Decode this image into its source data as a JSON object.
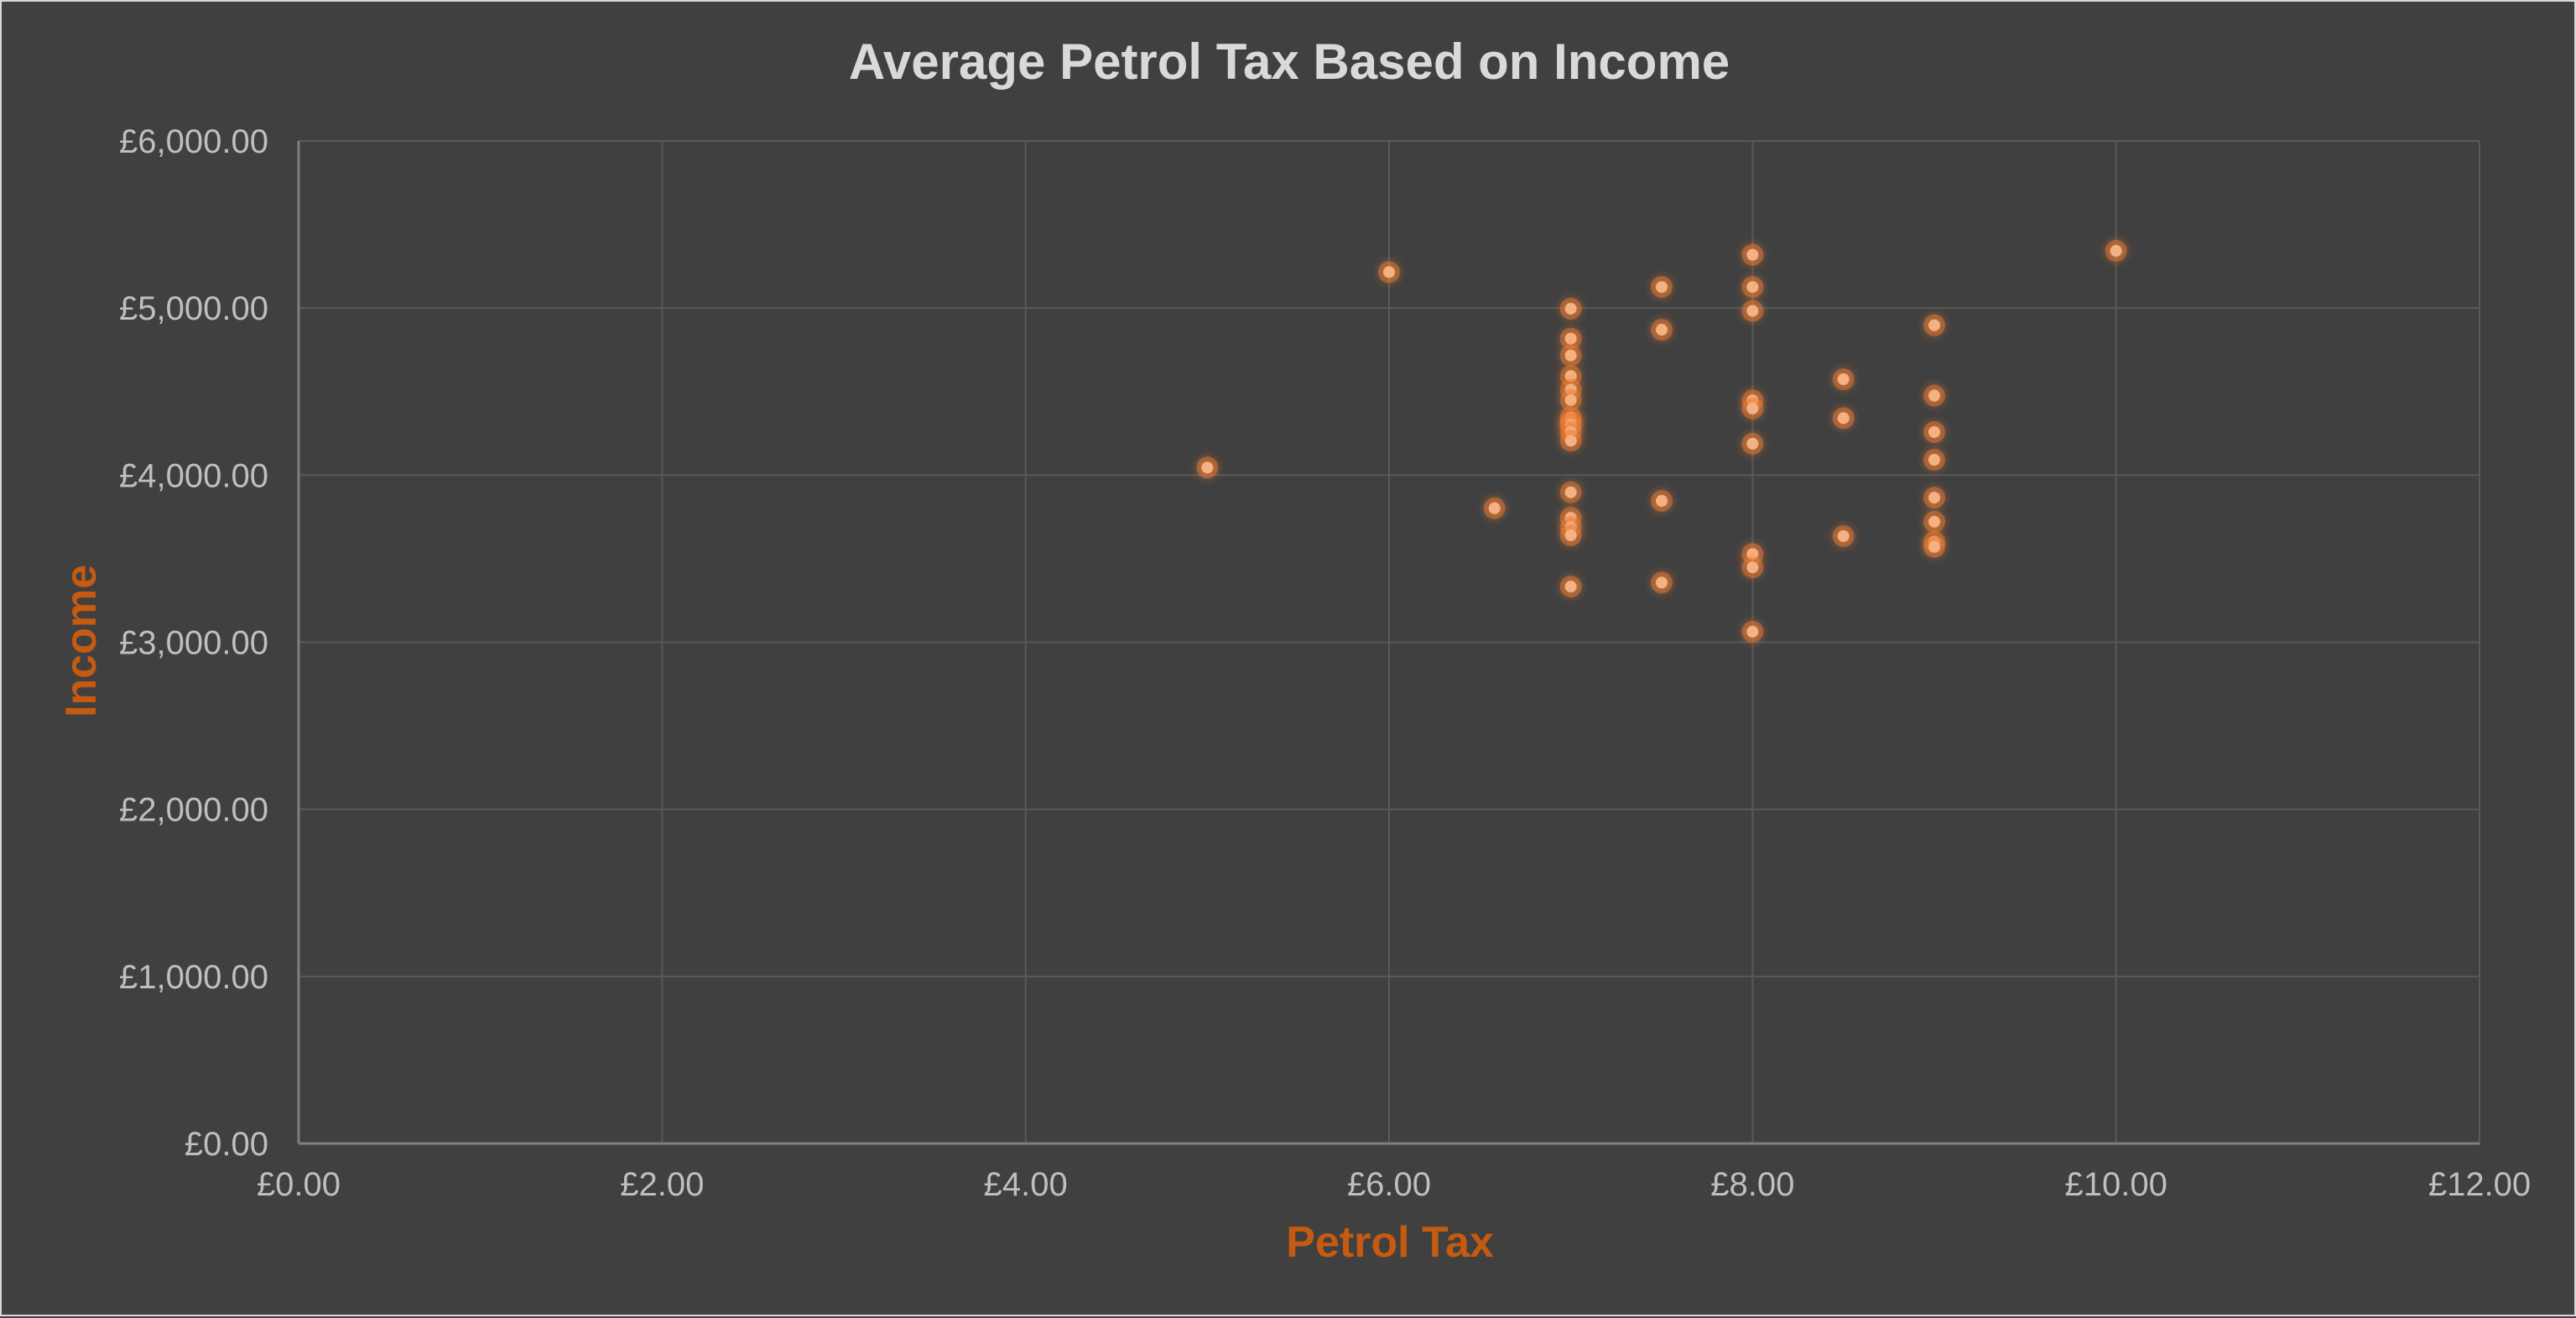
{
  "chart_data": {
    "type": "scatter",
    "title": "Average Petrol Tax Based on Income",
    "xlabel": "Petrol Tax",
    "ylabel": "Income",
    "xlim": [
      0,
      12
    ],
    "ylim": [
      0,
      6000
    ],
    "x_ticks": [
      0,
      2,
      4,
      6,
      8,
      10,
      12
    ],
    "y_ticks": [
      0,
      1000,
      2000,
      3000,
      4000,
      5000,
      6000
    ],
    "x_tick_labels": [
      "£0.00",
      "£2.00",
      "£4.00",
      "£6.00",
      "£8.00",
      "£10.00",
      "£12.00"
    ],
    "y_tick_labels": [
      "£0.00",
      "£1,000.00",
      "£2,000.00",
      "£3,000.00",
      "£4,000.00",
      "£5,000.00",
      "£6,000.00"
    ],
    "grid": true,
    "legend": "none",
    "colors": {
      "background": "#404040",
      "border": "#d9d9d9",
      "grid": "#595959",
      "axis": "#7f7f7f",
      "title": "#d9d9d9",
      "tick_text": "#bfbfbf",
      "axis_title": "#c55a11",
      "marker_fill": "#f4b183",
      "marker_glow": "#ed7d31"
    },
    "series": [
      {
        "points": [
          [
            5.0,
            4045
          ],
          [
            6.0,
            5215
          ],
          [
            6.58,
            3802
          ],
          [
            7.0,
            4996
          ],
          [
            7.0,
            4817
          ],
          [
            7.0,
            4716
          ],
          [
            7.0,
            4593
          ],
          [
            7.0,
            4512
          ],
          [
            7.0,
            4449
          ],
          [
            7.0,
            4345
          ],
          [
            7.0,
            4318
          ],
          [
            7.0,
            4300
          ],
          [
            7.0,
            4258
          ],
          [
            7.0,
            4206
          ],
          [
            7.0,
            3897
          ],
          [
            7.0,
            3745
          ],
          [
            7.0,
            3688
          ],
          [
            7.0,
            3640
          ],
          [
            7.0,
            3333
          ],
          [
            7.5,
            5126
          ],
          [
            7.5,
            4870
          ],
          [
            7.5,
            3846
          ],
          [
            7.5,
            3357
          ],
          [
            8.0,
            5319
          ],
          [
            8.0,
            5126
          ],
          [
            8.0,
            4983
          ],
          [
            8.0,
            4447
          ],
          [
            8.0,
            4399
          ],
          [
            8.0,
            4188
          ],
          [
            8.0,
            3528
          ],
          [
            8.0,
            3448
          ],
          [
            8.0,
            3063
          ],
          [
            8.5,
            4574
          ],
          [
            8.5,
            4341
          ],
          [
            8.5,
            3635
          ],
          [
            9.0,
            4897
          ],
          [
            9.0,
            4476
          ],
          [
            9.0,
            4258
          ],
          [
            9.0,
            4092
          ],
          [
            9.0,
            3865
          ],
          [
            9.0,
            3721
          ],
          [
            9.0,
            3601
          ],
          [
            9.0,
            3571
          ],
          [
            10.0,
            5342
          ]
        ]
      }
    ]
  }
}
